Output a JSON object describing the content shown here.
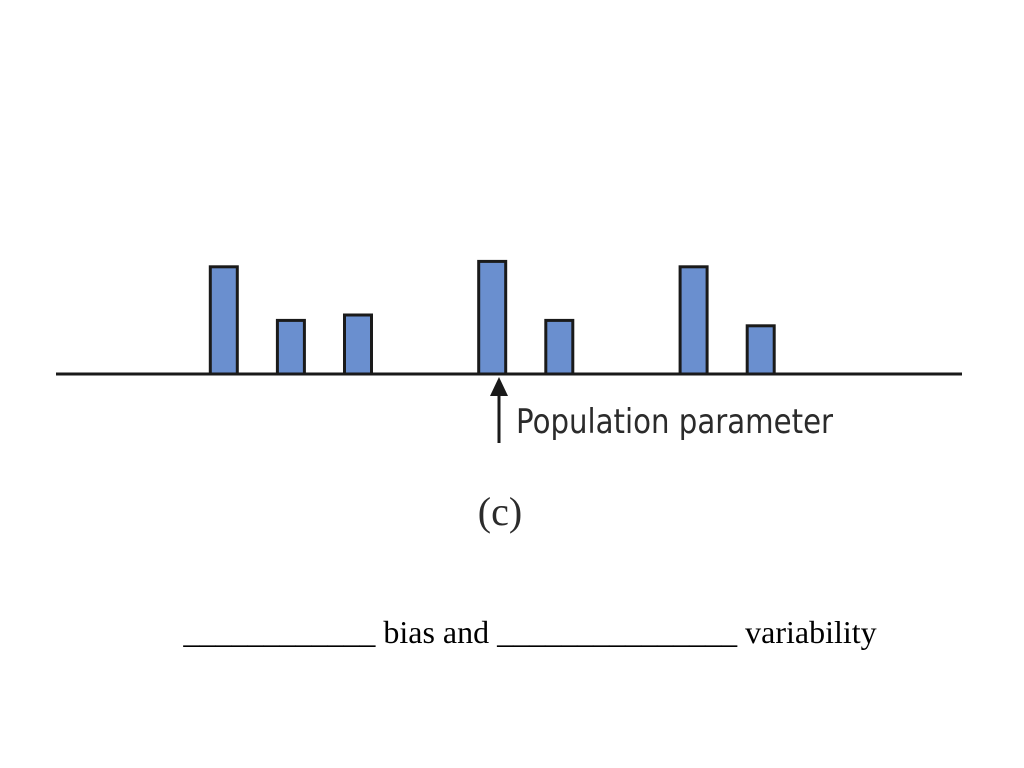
{
  "chart_data": {
    "type": "bar",
    "description_free": true,
    "values": [
      2,
      1,
      1.1,
      2.1,
      1,
      2,
      0.9
    ],
    "x": [
      -4,
      -3,
      -2,
      0,
      1,
      3,
      4
    ],
    "xlim": [
      -6.5,
      7
    ],
    "ylim": [
      0,
      2.5
    ],
    "bar_color": "#6a8fcf",
    "marker": {
      "x": 0,
      "label": "Population parameter"
    },
    "caption": "(c)"
  },
  "fill_in": {
    "text": "____________ bias and _______________ variability"
  }
}
